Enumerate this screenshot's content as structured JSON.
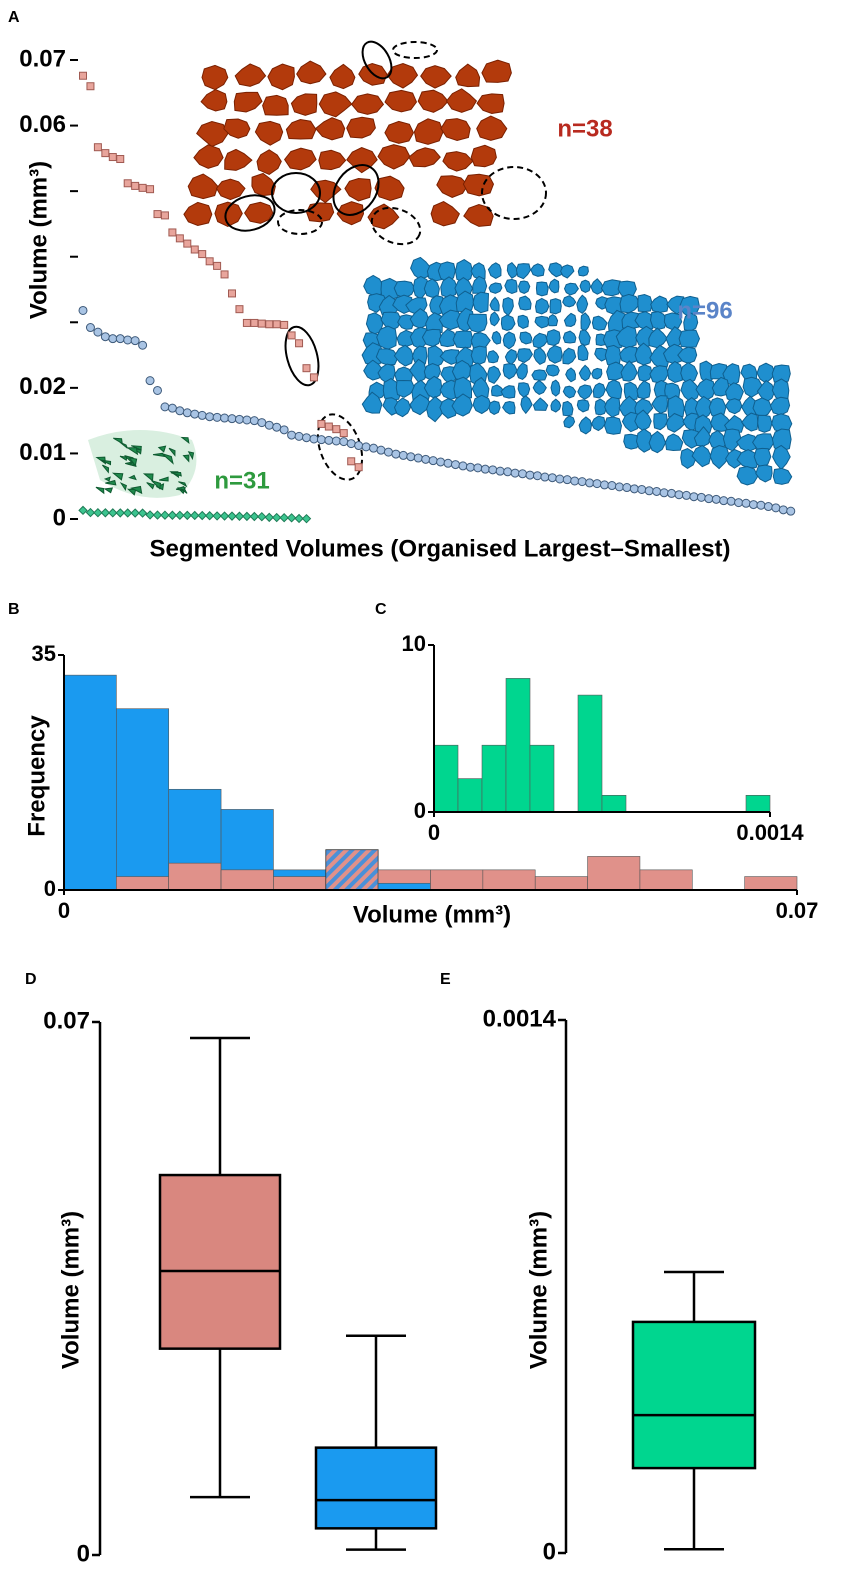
{
  "chart_data": [
    {
      "type": "scatter",
      "panel": "A",
      "ylabel": "Volume (mm³)",
      "xlabel": "Segmented Volumes (Organised Largest–Smallest)",
      "ylim": [
        0,
        0.07
      ],
      "yticks": [
        0,
        0.01,
        0.02,
        0.06,
        0.07
      ],
      "yminorticks": [
        0.03,
        0.04,
        0.05
      ],
      "series": [
        {
          "color": "#e8a59c",
          "edge": "#a05a52",
          "marker": "square",
          "values": [
            0.0676,
            0.066,
            0.0567,
            0.0558,
            0.0552,
            0.0549,
            0.0512,
            0.0508,
            0.0505,
            0.0503,
            0.0465,
            0.0463,
            0.0437,
            0.0428,
            0.042,
            0.0411,
            0.0404,
            0.0393,
            0.0386,
            0.0373,
            0.0344,
            0.032,
            0.0299,
            0.0299,
            0.0298,
            0.0297,
            0.0297,
            0.0296,
            0.028,
            0.0268,
            0.023,
            0.0216,
            0.0145,
            0.0141,
            0.0137,
            0.0131,
            0.0088,
            0.0079
          ]
        },
        {
          "color": "#a9c4e4",
          "edge": "#3e5a7a",
          "marker": "circle",
          "values": [
            0.0318,
            0.0292,
            0.0285,
            0.0278,
            0.0275,
            0.0275,
            0.0273,
            0.0272,
            0.0265,
            0.0211,
            0.0196,
            0.0171,
            0.0169,
            0.0165,
            0.0162,
            0.016,
            0.0158,
            0.0156,
            0.0155,
            0.0154,
            0.0153,
            0.0152,
            0.0151,
            0.015,
            0.0147,
            0.0143,
            0.014,
            0.0136,
            0.0128,
            0.0126,
            0.0124,
            0.0122,
            0.0121,
            0.012,
            0.0119,
            0.0118,
            0.0115,
            0.0112,
            0.011,
            0.0108,
            0.0105,
            0.0102,
            0.0099,
            0.0097,
            0.0095,
            0.0093,
            0.0091,
            0.0089,
            0.0087,
            0.0085,
            0.0083,
            0.0081,
            0.0079,
            0.0078,
            0.0076,
            0.0075,
            0.0073,
            0.0072,
            0.007,
            0.0069,
            0.0067,
            0.0066,
            0.0064,
            0.0063,
            0.0061,
            0.006,
            0.0058,
            0.0057,
            0.0055,
            0.0054,
            0.0052,
            0.0051,
            0.0049,
            0.0048,
            0.0046,
            0.0045,
            0.0043,
            0.0042,
            0.004,
            0.0039,
            0.0037,
            0.0036,
            0.0034,
            0.0033,
            0.0031,
            0.003,
            0.0028,
            0.0027,
            0.0025,
            0.0024,
            0.0022,
            0.0021,
            0.0019,
            0.0017,
            0.0014,
            0.0012
          ]
        },
        {
          "color": "#3cc48f",
          "edge": "#1e7a55",
          "marker": "diamond",
          "values": [
            0.00132,
            0.00098,
            0.00096,
            0.00095,
            0.00094,
            0.00093,
            0.00092,
            0.00091,
            0.0009,
            0.00062,
            0.0006,
            0.00058,
            0.00057,
            0.00056,
            0.00055,
            0.00054,
            0.00053,
            0.0005,
            0.00047,
            0.00045,
            0.00044,
            0.00042,
            0.0004,
            0.00038,
            0.00035,
            0.00025,
            0.00022,
            0.0002,
            0.00018,
            8e-05,
            5e-05
          ]
        }
      ],
      "annotations": [
        {
          "text": "n=38",
          "color": "#b82a1f"
        },
        {
          "text": "n=96",
          "color": "#5a84c8"
        },
        {
          "text": "n=31",
          "color": "#2e9a3e"
        }
      ]
    },
    {
      "type": "histogram",
      "panel": "B",
      "xlabel": "Volume (mm³)",
      "ylabel": "Frequency",
      "xlim": [
        0,
        0.07
      ],
      "xticks": [
        0,
        0.07
      ],
      "ylim": [
        0,
        35
      ],
      "yticks": [
        0,
        35
      ],
      "overlap_hatched": true,
      "bins": [
        0,
        0.005,
        0.01,
        0.015,
        0.02,
        0.025,
        0.03,
        0.035,
        0.04,
        0.045,
        0.05,
        0.055,
        0.06,
        0.065,
        0.07
      ],
      "series": [
        {
          "color": "#1a9af0",
          "values": [
            32,
            27,
            15,
            12,
            3,
            6,
            1,
            0,
            0,
            0,
            0,
            0,
            0,
            0
          ]
        },
        {
          "color": "#e0918a",
          "values": [
            0,
            2,
            4,
            3,
            2,
            6,
            3,
            3,
            3,
            2,
            5,
            3,
            0,
            2
          ]
        }
      ]
    },
    {
      "type": "histogram",
      "panel": "C",
      "xlim": [
        0,
        0.0014
      ],
      "xticks": [
        0,
        0.0014
      ],
      "ylim": [
        0,
        10
      ],
      "yticks": [
        0,
        10
      ],
      "bins": [
        0,
        0.0001,
        0.0002,
        0.0003,
        0.0004,
        0.0005,
        0.0006,
        0.0007,
        0.0008,
        0.0009,
        0.001,
        0.0011,
        0.0012,
        0.0013,
        0.0014
      ],
      "series": [
        {
          "color": "#00d68f",
          "values": [
            4,
            2,
            4,
            8,
            4,
            0,
            7,
            1,
            0,
            0,
            0,
            0,
            0,
            1
          ]
        }
      ]
    },
    {
      "type": "box",
      "panel": "D",
      "ylabel": "Volume (mm³)",
      "ylim": [
        0,
        0.07
      ],
      "yticks": [
        0,
        0.07
      ],
      "series": [
        {
          "color": "#d9877f",
          "min": 0.0076,
          "q1": 0.0271,
          "median": 0.0373,
          "q3": 0.0499,
          "max": 0.0679
        },
        {
          "color": "#1a9af0",
          "min": 0.0007,
          "q1": 0.0035,
          "median": 0.0072,
          "q3": 0.0141,
          "max": 0.0288
        }
      ]
    },
    {
      "type": "box",
      "panel": "E",
      "ylabel": "Volume (mm³)",
      "ylim": [
        0,
        0.0014
      ],
      "yticks": [
        0,
        0.0014
      ],
      "series": [
        {
          "color": "#00d68f",
          "min": 1e-05,
          "q1": 0.000223,
          "median": 0.000362,
          "q3": 0.000607,
          "max": 0.000738
        }
      ]
    }
  ]
}
